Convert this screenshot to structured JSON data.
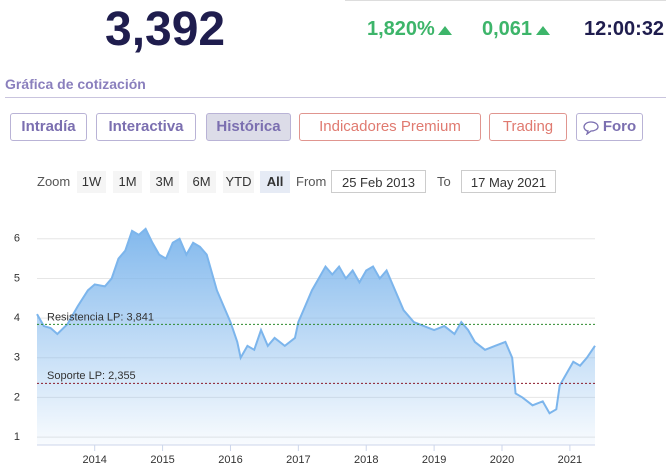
{
  "header": {
    "price": "3,392",
    "change_pct": "1,820%",
    "change_abs": "0,061",
    "time": "12:00:32"
  },
  "section_title": "Gráfica de cotización",
  "tabs": [
    "Intradía",
    "Interactiva",
    "Histórica",
    "Indicadores Premium",
    "Trading",
    "Foro"
  ],
  "zoom": {
    "label": "Zoom",
    "buttons": [
      "1W",
      "1M",
      "3M",
      "6M",
      "YTD",
      "All"
    ],
    "from_label": "From",
    "from": "25 Feb 2013",
    "to_label": "To",
    "to": "17 May 2021"
  },
  "chart_data": {
    "type": "area",
    "color": "#7cb5ec",
    "x": [
      2013.15,
      2013.25,
      2013.35,
      2013.45,
      2013.6,
      2013.75,
      2013.9,
      2014.0,
      2014.15,
      2014.25,
      2014.35,
      2014.45,
      2014.55,
      2014.65,
      2014.75,
      2014.85,
      2014.95,
      2015.05,
      2015.15,
      2015.25,
      2015.35,
      2015.45,
      2015.55,
      2015.65,
      2015.8,
      2015.9,
      2016.0,
      2016.1,
      2016.15,
      2016.25,
      2016.35,
      2016.45,
      2016.55,
      2016.65,
      2016.8,
      2016.95,
      2017.0,
      2017.1,
      2017.2,
      2017.3,
      2017.4,
      2017.5,
      2017.6,
      2017.7,
      2017.8,
      2017.9,
      2018.0,
      2018.1,
      2018.2,
      2018.3,
      2018.4,
      2018.55,
      2018.7,
      2018.85,
      2019.0,
      2019.15,
      2019.3,
      2019.4,
      2019.5,
      2019.6,
      2019.75,
      2019.9,
      2020.05,
      2020.15,
      2020.2,
      2020.3,
      2020.45,
      2020.6,
      2020.7,
      2020.8,
      2020.85,
      2020.95,
      2021.05,
      2021.15,
      2021.25,
      2021.37
    ],
    "series": [
      {
        "values": [
          4.1,
          3.8,
          3.75,
          3.6,
          3.85,
          4.3,
          4.7,
          4.85,
          4.8,
          5.0,
          5.5,
          5.7,
          6.2,
          6.1,
          6.25,
          5.9,
          5.6,
          5.5,
          5.9,
          6.0,
          5.6,
          5.9,
          5.8,
          5.6,
          4.7,
          4.3,
          3.9,
          3.4,
          3.0,
          3.3,
          3.2,
          3.7,
          3.3,
          3.5,
          3.3,
          3.5,
          3.9,
          4.3,
          4.7,
          5.0,
          5.3,
          5.1,
          5.3,
          5.0,
          5.2,
          4.9,
          5.2,
          5.3,
          5.0,
          5.2,
          4.8,
          4.2,
          3.9,
          3.8,
          3.7,
          3.8,
          3.6,
          3.9,
          3.7,
          3.4,
          3.2,
          3.3,
          3.4,
          3.0,
          2.1,
          2.0,
          1.8,
          1.9,
          1.6,
          1.7,
          2.3,
          2.6,
          2.9,
          2.8,
          3.0,
          3.3
        ]
      }
    ],
    "xlim": [
      2013.15,
      2021.37
    ],
    "xticks": [
      2014,
      2015,
      2016,
      2017,
      2018,
      2019,
      2020,
      2021
    ],
    "ylim": [
      0.8,
      6.6
    ],
    "yticks": [
      1,
      2,
      3,
      4,
      5,
      6
    ],
    "grid": true,
    "reference_lines": [
      {
        "label": "Resistencia LP: 3,841",
        "value": 3.841,
        "color": "#2e8b2e"
      },
      {
        "label": "Soporte LP: 2,355",
        "value": 2.355,
        "color": "#8b1a2b"
      }
    ]
  }
}
